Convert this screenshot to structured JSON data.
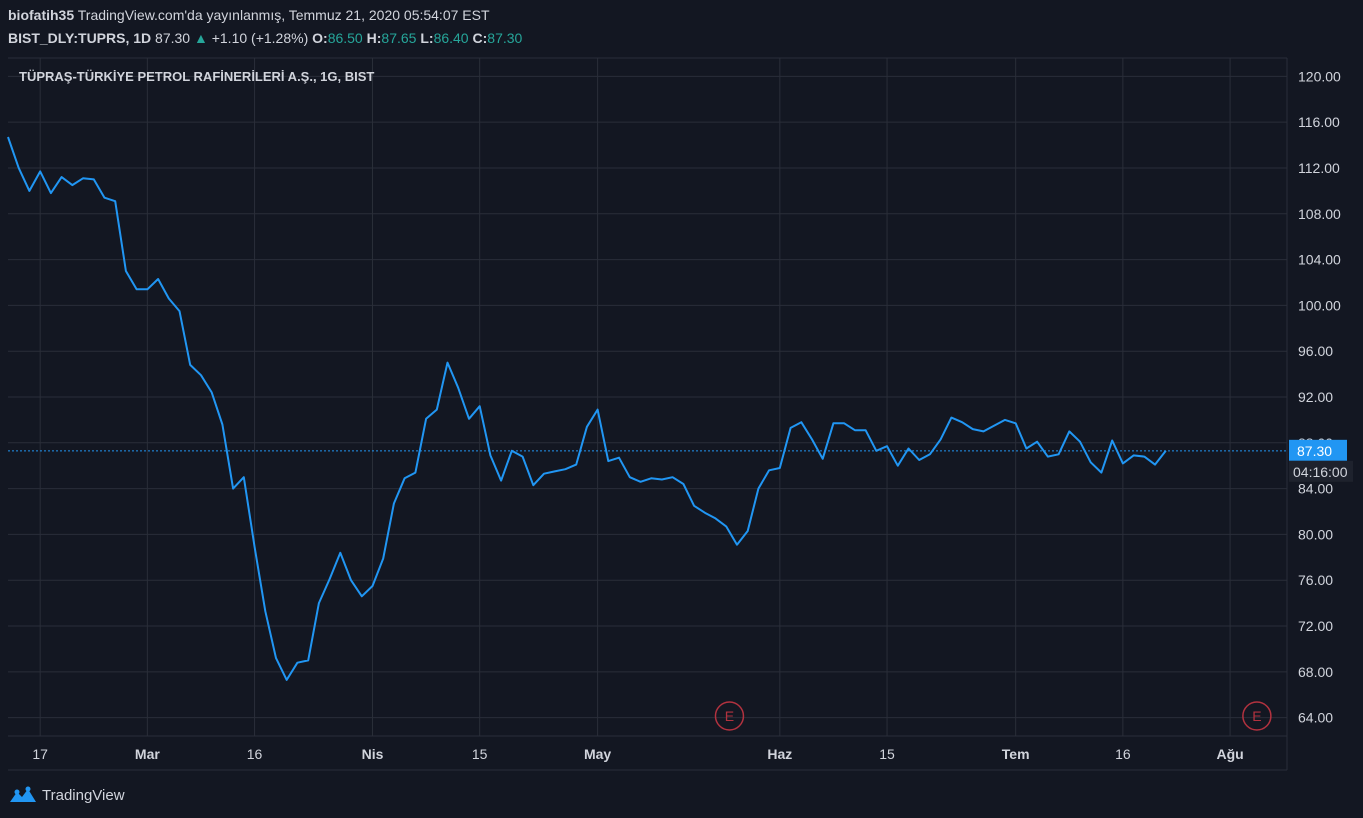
{
  "header": {
    "user": "biofatih35",
    "published": "TradingView.com'da yayınlanmış, Temmuz 21, 2020 05:54:07 EST",
    "symbol": "BIST_DLY:TUPRS, 1D",
    "last": "87.30",
    "change_icon": "triangle-up-icon",
    "change": "+1.10 (+1.28%)",
    "open_label": "O:",
    "open": "86.50",
    "high_label": "H:",
    "high": "87.65",
    "low_label": "L:",
    "low": "86.40",
    "close_label": "C:",
    "close": "87.30"
  },
  "footer": {
    "brand": "TradingView",
    "logo_icon": "tradingview-logo-icon"
  },
  "colors": {
    "background": "#131722",
    "grid": "#2a2e39",
    "line": "#2196f3",
    "up": "#26a69a",
    "event": "#b2323f"
  },
  "chart_data": {
    "type": "line",
    "title": "TÜPRAŞ-TÜRKİYE PETROL RAFİNERİLERİ A.Ş., 1G, BIST",
    "ylim": [
      62.4,
      121.6
    ],
    "yticks": [
      "120.00",
      "116.00",
      "112.00",
      "108.00",
      "104.00",
      "100.00",
      "96.00",
      "92.00",
      "88.00",
      "84.00",
      "80.00",
      "76.00",
      "72.00",
      "68.00",
      "64.00"
    ],
    "xticks": [
      {
        "label": "17",
        "index": 3
      },
      {
        "label": "Mar",
        "index": 13
      },
      {
        "label": "16",
        "index": 23
      },
      {
        "label": "Nis",
        "index": 34
      },
      {
        "label": "15",
        "index": 44
      },
      {
        "label": "May",
        "index": 55
      },
      {
        "label": "Haz",
        "index": 72
      },
      {
        "label": "15",
        "index": 82
      },
      {
        "label": "Tem",
        "index": 94
      },
      {
        "label": "16",
        "index": 104
      },
      {
        "label": "Ağu",
        "index": 114
      }
    ],
    "current_price": "87.30",
    "countdown": "04:16:00",
    "grid": true,
    "events": [
      {
        "label": "E",
        "index": 67.3
      },
      {
        "label": "E",
        "index": 116.5
      }
    ],
    "series": [
      {
        "values": [
          114.7,
          112.0,
          110.0,
          111.7,
          109.8,
          111.2,
          110.5,
          111.1,
          111.0,
          109.4,
          109.1,
          103.0,
          101.4,
          101.4,
          102.3,
          100.6,
          99.5,
          94.8,
          93.9,
          92.4,
          89.6,
          84.0,
          85.0,
          78.9,
          73.3,
          69.2,
          67.3,
          68.8,
          69.0,
          74.0,
          76.1,
          78.4,
          76.0,
          74.6,
          75.5,
          77.9,
          82.7,
          84.9,
          85.4,
          90.1,
          90.9,
          95.0,
          92.8,
          90.1,
          91.2,
          86.9,
          84.7,
          87.3,
          86.8,
          84.3,
          85.3,
          85.5,
          85.7,
          86.1,
          89.4,
          90.9,
          86.4,
          86.7,
          85.0,
          84.6,
          84.9,
          84.8,
          85.0,
          84.4,
          82.5,
          81.9,
          81.4,
          80.7,
          79.1,
          80.3,
          84.0,
          85.6,
          85.8,
          89.3,
          89.8,
          88.3,
          86.6,
          89.7,
          89.7,
          89.1,
          89.1,
          87.3,
          87.7,
          86.0,
          87.5,
          86.5,
          87.0,
          88.3,
          90.2,
          89.8,
          89.2,
          89.0,
          89.5,
          90.0,
          89.7,
          87.5,
          88.1,
          86.8,
          87.0,
          89.0,
          88.1,
          86.3,
          85.4,
          88.2,
          86.2,
          86.9,
          86.8,
          86.1,
          87.3
        ]
      }
    ]
  }
}
